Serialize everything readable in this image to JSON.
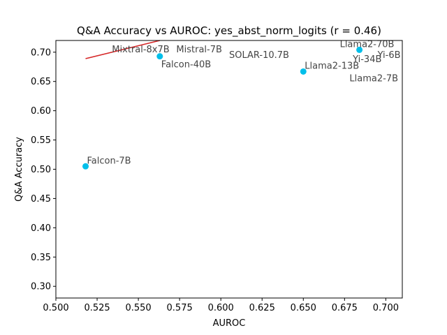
{
  "chart_data": {
    "type": "scatter",
    "title": "Q&A Accuracy vs AUROC: yes_abst_norm_logits (r = 0.46)",
    "xlabel": "AUROC",
    "ylabel": "Q&A Accuracy",
    "xlim": [
      0.5,
      0.71
    ],
    "ylim": [
      0.28,
      0.72
    ],
    "xticks": [
      "0.500",
      "0.525",
      "0.550",
      "0.575",
      "0.600",
      "0.625",
      "0.650",
      "0.675",
      "0.700"
    ],
    "yticks": [
      "0.30",
      "0.35",
      "0.40",
      "0.45",
      "0.50",
      "0.55",
      "0.60",
      "0.65",
      "0.70"
    ],
    "grid": false,
    "point_color": "#00bfea",
    "fit_line_color": "#d62728",
    "points": [
      {
        "label": "Falcon-7B",
        "x": 0.518,
        "y": 0.505
      },
      {
        "label": "Falcon-40B",
        "x": 0.563,
        "y": 0.693
      },
      {
        "label": "Llama2-13B",
        "x": 0.65,
        "y": 0.667
      },
      {
        "label": "Llama2-70B",
        "x": 0.684,
        "y": 0.704
      }
    ],
    "annotations": [
      {
        "label": "Mixtral-8x7B",
        "x": 0.534,
        "y": 0.7
      },
      {
        "label": "Mistral-7B",
        "x": 0.573,
        "y": 0.7
      },
      {
        "label": "SOLAR-10.7B",
        "x": 0.605,
        "y": 0.69
      },
      {
        "label": "Yi-6B",
        "x": 0.695,
        "y": 0.69
      },
      {
        "label": "Yi-34B",
        "x": 0.68,
        "y": 0.683
      },
      {
        "label": "Llama2-7B",
        "x": 0.678,
        "y": 0.65
      }
    ],
    "fit_line": {
      "x": [
        0.518,
        0.563
      ],
      "y": [
        0.689,
        0.72
      ]
    }
  }
}
